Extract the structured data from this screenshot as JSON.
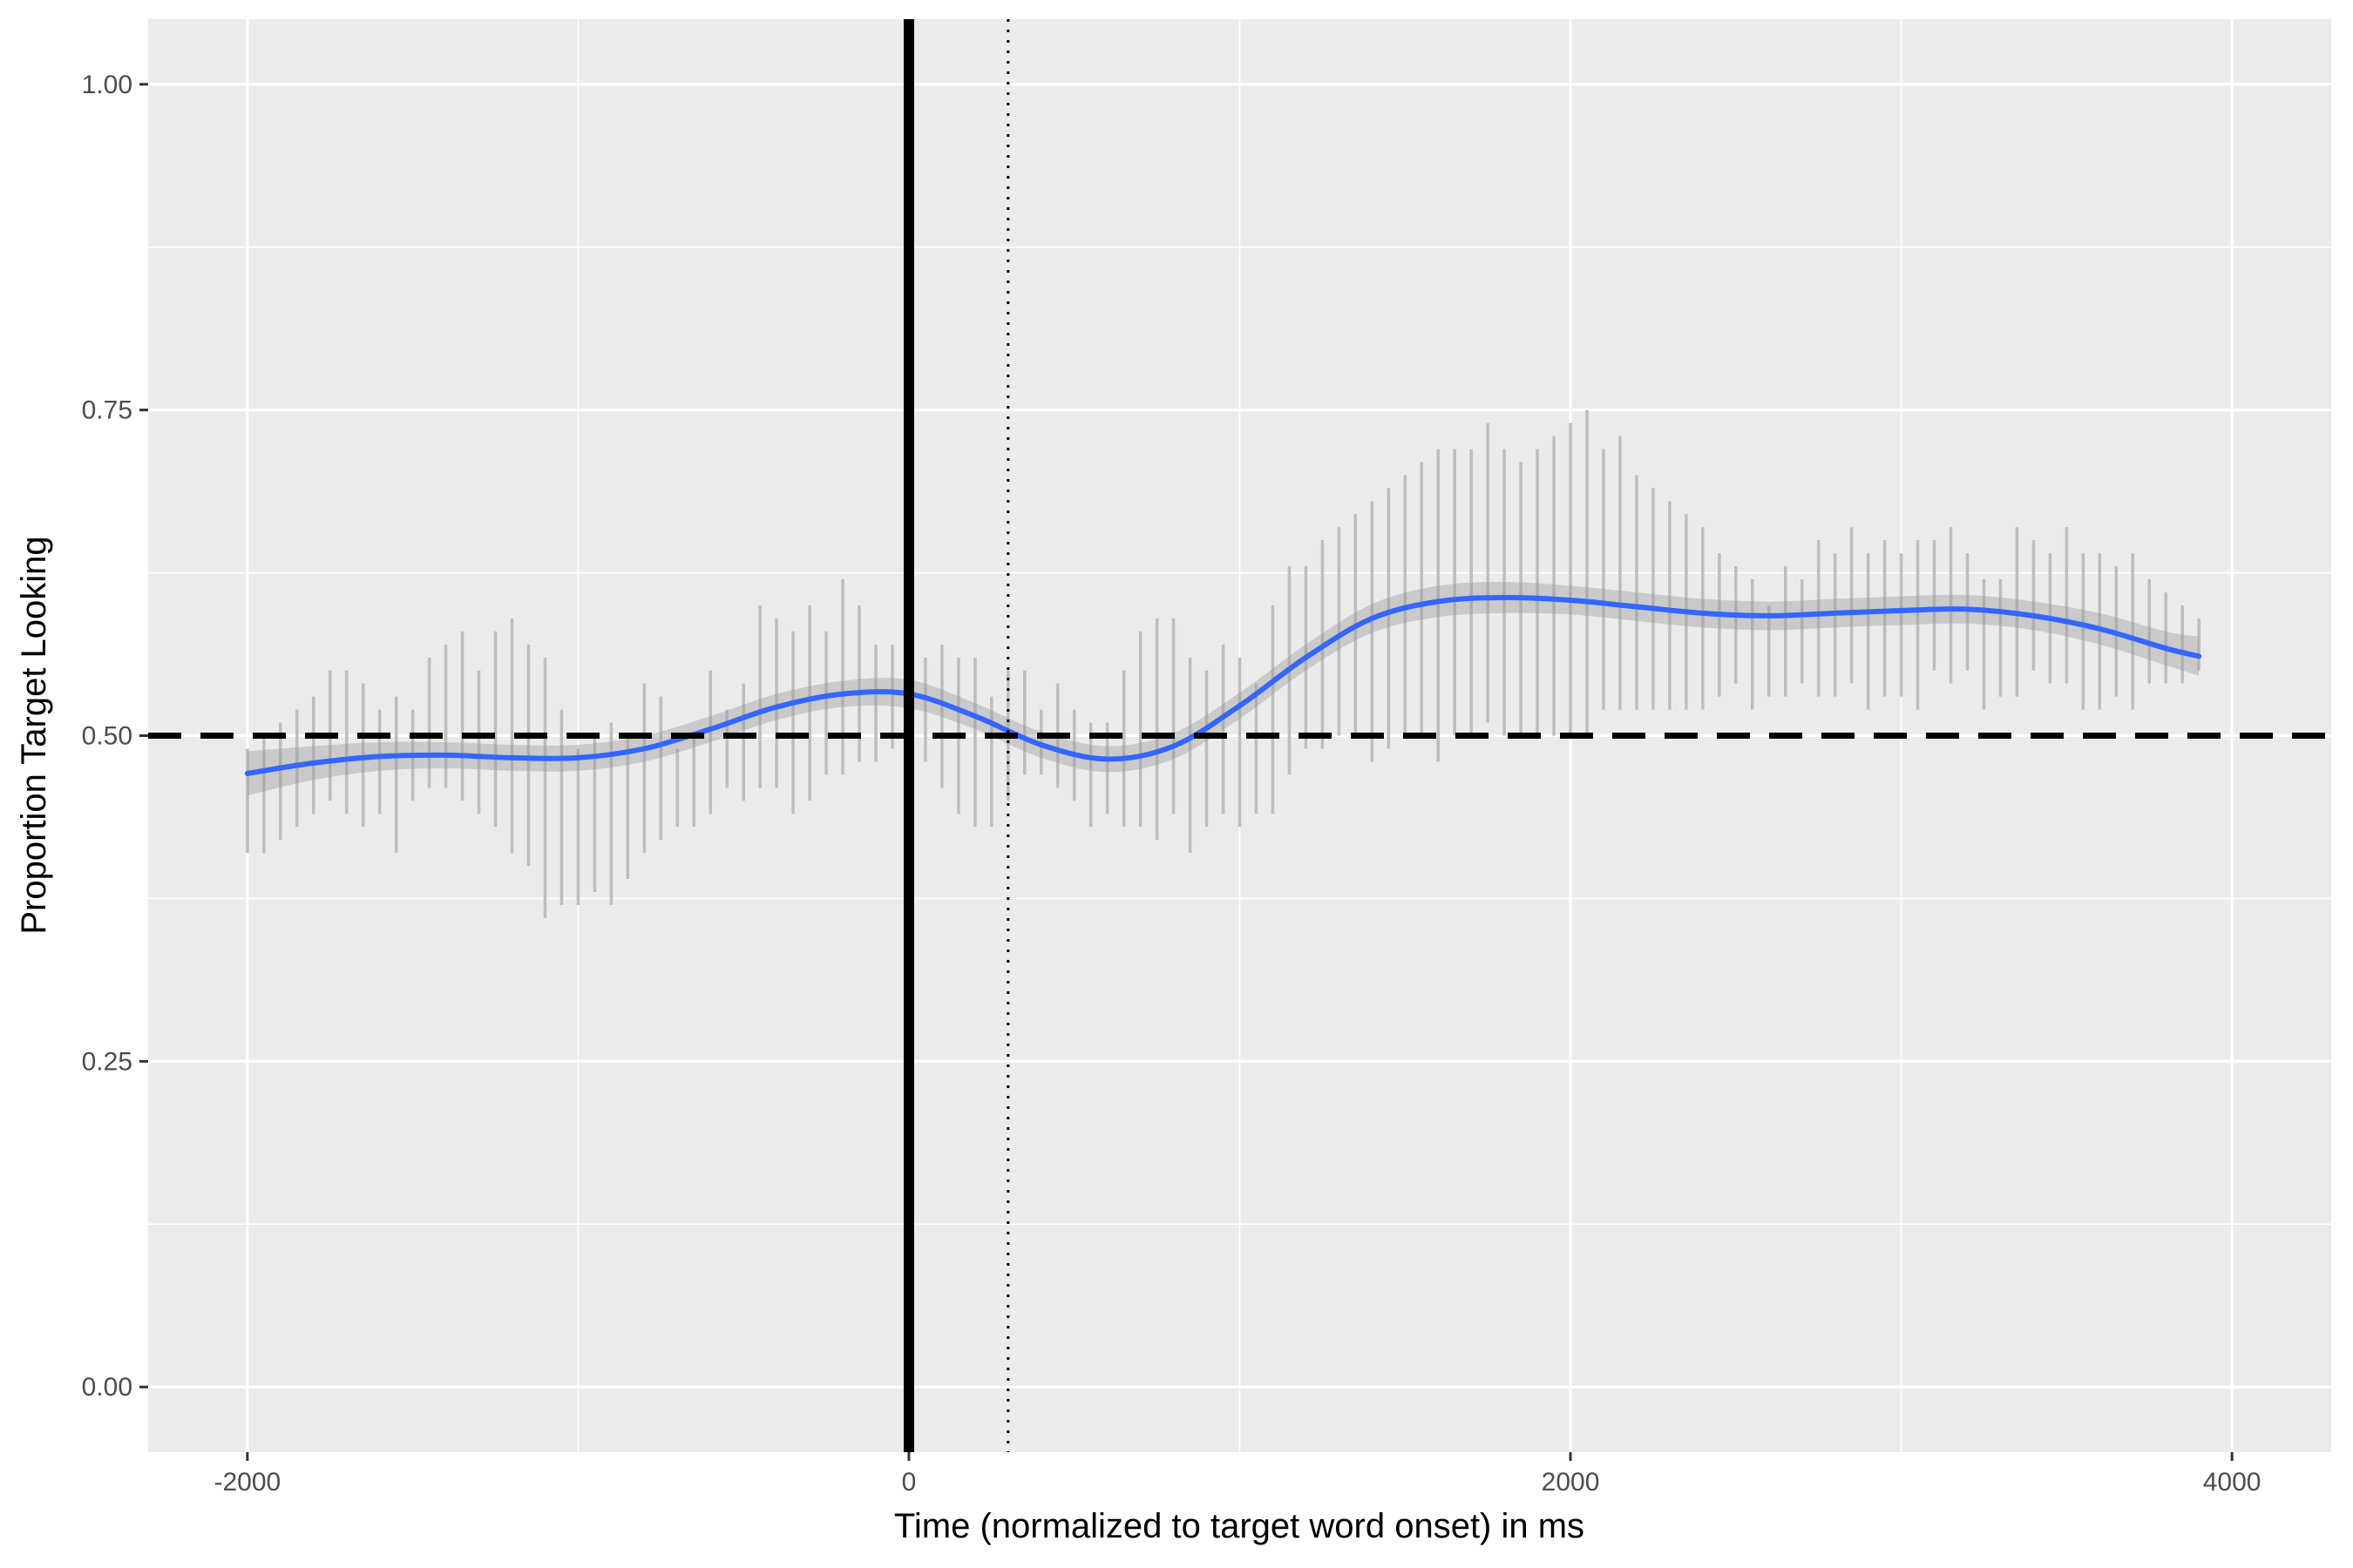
{
  "chart_data": {
    "type": "line",
    "title": "",
    "xlabel": "Time (normalized to target word onset) in ms",
    "ylabel": "Proportion Target Looking",
    "xlim": [
      -2300,
      4300
    ],
    "ylim": [
      -0.05,
      1.05
    ],
    "x_ticks": [
      -2000,
      0,
      2000,
      4000
    ],
    "x_tick_labels": [
      "-2000",
      "0",
      "2000",
      "4000"
    ],
    "y_ticks": [
      0,
      0.25,
      0.5,
      0.75,
      1.0
    ],
    "y_tick_labels": [
      "0.00",
      "0.25",
      "0.50",
      "0.75",
      "1.00"
    ],
    "grid": true,
    "legend": "none",
    "colors": {
      "panel_bg": "#ebebeb",
      "grid": "#ffffff",
      "smooth_line": "#3366ff",
      "ribbon": "#999999",
      "error_bars": "#bdbdbd",
      "reference_lines": "#000000"
    },
    "reference_lines": {
      "horizontal_dashed_y": 0.5,
      "vertical_solid_x": 0,
      "vertical_dotted_x": 300
    },
    "smooth": {
      "x": [
        -2000,
        -1800,
        -1600,
        -1400,
        -1200,
        -1000,
        -800,
        -600,
        -400,
        -200,
        0,
        200,
        400,
        600,
        800,
        1000,
        1200,
        1400,
        1600,
        1800,
        2000,
        2200,
        2400,
        2600,
        2800,
        3000,
        3200,
        3400,
        3600,
        3800,
        3900
      ],
      "y": [
        0.471,
        0.479,
        0.484,
        0.485,
        0.483,
        0.483,
        0.49,
        0.505,
        0.522,
        0.532,
        0.532,
        0.515,
        0.493,
        0.482,
        0.492,
        0.523,
        0.56,
        0.59,
        0.603,
        0.606,
        0.604,
        0.599,
        0.594,
        0.592,
        0.594,
        0.596,
        0.597,
        0.592,
        0.582,
        0.567,
        0.561
      ],
      "se": [
        0.017,
        0.013,
        0.011,
        0.01,
        0.01,
        0.01,
        0.01,
        0.01,
        0.01,
        0.01,
        0.011,
        0.01,
        0.01,
        0.01,
        0.01,
        0.01,
        0.01,
        0.011,
        0.012,
        0.012,
        0.011,
        0.011,
        0.011,
        0.011,
        0.011,
        0.011,
        0.011,
        0.011,
        0.012,
        0.013,
        0.015
      ]
    },
    "error_bars": {
      "x": [
        -2000,
        -1950,
        -1900,
        -1850,
        -1800,
        -1750,
        -1700,
        -1650,
        -1600,
        -1550,
        -1500,
        -1450,
        -1400,
        -1350,
        -1300,
        -1250,
        -1200,
        -1150,
        -1100,
        -1050,
        -1000,
        -950,
        -900,
        -850,
        -800,
        -750,
        -700,
        -650,
        -600,
        -550,
        -500,
        -450,
        -400,
        -350,
        -300,
        -250,
        -200,
        -150,
        -100,
        -50,
        0,
        50,
        100,
        150,
        200,
        250,
        300,
        350,
        400,
        450,
        500,
        550,
        600,
        650,
        700,
        750,
        800,
        850,
        900,
        950,
        1000,
        1050,
        1100,
        1150,
        1200,
        1250,
        1300,
        1350,
        1400,
        1450,
        1500,
        1550,
        1600,
        1650,
        1700,
        1750,
        1800,
        1850,
        1900,
        1950,
        2000,
        2050,
        2100,
        2150,
        2200,
        2250,
        2300,
        2350,
        2400,
        2450,
        2500,
        2550,
        2600,
        2650,
        2700,
        2750,
        2800,
        2850,
        2900,
        2950,
        3000,
        3050,
        3100,
        3150,
        3200,
        3250,
        3300,
        3350,
        3400,
        3450,
        3500,
        3550,
        3600,
        3650,
        3700,
        3750,
        3800,
        3850,
        3900
      ],
      "lower": [
        0.41,
        0.41,
        0.42,
        0.43,
        0.44,
        0.45,
        0.44,
        0.43,
        0.44,
        0.41,
        0.45,
        0.46,
        0.46,
        0.45,
        0.44,
        0.43,
        0.41,
        0.4,
        0.36,
        0.37,
        0.37,
        0.38,
        0.37,
        0.39,
        0.41,
        0.42,
        0.43,
        0.43,
        0.44,
        0.46,
        0.45,
        0.46,
        0.46,
        0.44,
        0.45,
        0.47,
        0.47,
        0.48,
        0.48,
        0.49,
        0.49,
        0.48,
        0.46,
        0.44,
        0.43,
        0.43,
        0.45,
        0.47,
        0.47,
        0.46,
        0.45,
        0.43,
        0.44,
        0.43,
        0.43,
        0.42,
        0.44,
        0.41,
        0.43,
        0.44,
        0.43,
        0.44,
        0.44,
        0.47,
        0.49,
        0.49,
        0.5,
        0.5,
        0.48,
        0.49,
        0.5,
        0.5,
        0.48,
        0.5,
        0.5,
        0.51,
        0.5,
        0.5,
        0.5,
        0.5,
        0.5,
        0.5,
        0.52,
        0.52,
        0.52,
        0.52,
        0.52,
        0.52,
        0.52,
        0.53,
        0.54,
        0.52,
        0.53,
        0.53,
        0.54,
        0.53,
        0.53,
        0.54,
        0.52,
        0.53,
        0.53,
        0.52,
        0.55,
        0.54,
        0.55,
        0.52,
        0.53,
        0.53,
        0.55,
        0.54,
        0.54,
        0.52,
        0.52,
        0.53,
        0.52,
        0.54,
        0.54,
        0.54,
        0.55
      ],
      "upper": [
        0.49,
        0.5,
        0.51,
        0.52,
        0.53,
        0.55,
        0.55,
        0.54,
        0.52,
        0.53,
        0.52,
        0.56,
        0.57,
        0.58,
        0.55,
        0.58,
        0.59,
        0.57,
        0.56,
        0.52,
        0.49,
        0.5,
        0.51,
        0.5,
        0.54,
        0.53,
        0.49,
        0.5,
        0.55,
        0.52,
        0.54,
        0.6,
        0.59,
        0.58,
        0.6,
        0.58,
        0.62,
        0.6,
        0.57,
        0.57,
        0.59,
        0.56,
        0.57,
        0.56,
        0.56,
        0.53,
        0.55,
        0.55,
        0.52,
        0.54,
        0.52,
        0.51,
        0.51,
        0.55,
        0.58,
        0.59,
        0.59,
        0.56,
        0.55,
        0.57,
        0.56,
        0.54,
        0.6,
        0.63,
        0.63,
        0.65,
        0.66,
        0.67,
        0.68,
        0.69,
        0.7,
        0.71,
        0.72,
        0.72,
        0.72,
        0.74,
        0.72,
        0.71,
        0.72,
        0.73,
        0.74,
        0.75,
        0.72,
        0.73,
        0.7,
        0.69,
        0.68,
        0.67,
        0.66,
        0.64,
        0.63,
        0.62,
        0.6,
        0.63,
        0.62,
        0.65,
        0.64,
        0.66,
        0.64,
        0.65,
        0.64,
        0.65,
        0.65,
        0.66,
        0.64,
        0.62,
        0.62,
        0.66,
        0.65,
        0.64,
        0.66,
        0.64,
        0.64,
        0.63,
        0.64,
        0.62,
        0.61,
        0.6,
        0.59
      ]
    }
  }
}
